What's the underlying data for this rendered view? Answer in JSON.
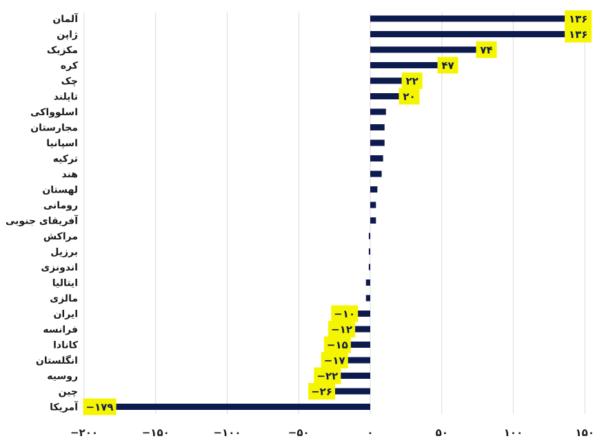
{
  "chart_data": {
    "type": "bar",
    "orientation": "horizontal",
    "categories": [
      "آلمان",
      "ژاپن",
      "مکزیک",
      "کره",
      "چک",
      "تایلند",
      "اسلوواکی",
      "مجارستان",
      "اسپانیا",
      "ترکیه",
      "هند",
      "لهستان",
      "رومانی",
      "آفریقای جنوبی",
      "مراکش",
      "برزیل",
      "اندونزی",
      "ایتالیا",
      "مالزی",
      "ایران",
      "فرانسه",
      "کانادا",
      "انگلستان",
      "روسیه",
      "چین",
      "آمریکا"
    ],
    "values": [
      136,
      136,
      74,
      47,
      22,
      20,
      11,
      10,
      10,
      9,
      8,
      5,
      4,
      4,
      -1,
      -1,
      -1,
      -3,
      -3,
      -10,
      -12,
      -15,
      -17,
      -22,
      -26,
      -179
    ],
    "data_labels": [
      "۱۳۶",
      "۱۳۶",
      "۷۴",
      "۴۷",
      "۲۲",
      "۲۰",
      "",
      "",
      "",
      "",
      "",
      "",
      "",
      "",
      "",
      "",
      "",
      "",
      "",
      "−۱۰",
      "−۱۲",
      "−۱۵",
      "−۱۷",
      "−۲۲",
      "−۲۶",
      "−۱۷۹"
    ],
    "x_ticks": [
      -200,
      -150,
      -100,
      -50,
      0,
      50,
      100,
      150
    ],
    "x_tick_labels": [
      "−۲۰۰",
      "−۱۵۰",
      "−۱۰۰",
      "−۵۰",
      "۰",
      "۵۰",
      "۱۰۰",
      "۱۵۰"
    ],
    "xlim": [
      -200,
      150
    ],
    "grid": true,
    "title": "",
    "xlabel": "",
    "ylabel": ""
  },
  "colors": {
    "bar": "#0d1a4d",
    "label_bg": "#f5f500",
    "label_text": "#0d1a4d",
    "grid": "#d9d9d9"
  }
}
